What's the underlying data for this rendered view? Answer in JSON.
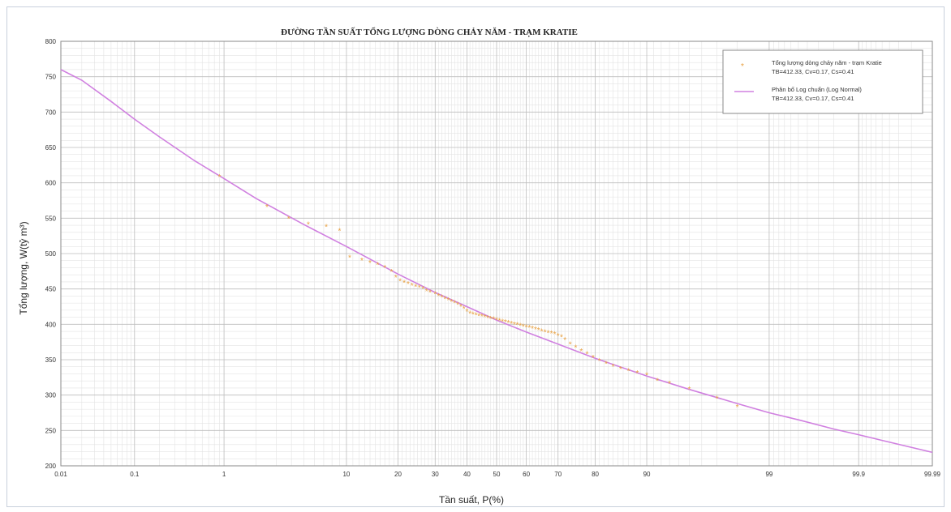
{
  "chart_data": {
    "type": "scatter",
    "title": "ĐƯỜNG TẦN SUẤT TỔNG LƯỢNG DÒNG CHẢY NĂM - TRẠM KRATIE",
    "xlabel": "Tần suất, P(%)",
    "ylabel": "Tổng lượng, W(tỷ m³)",
    "x_scale": "probability",
    "xlim": [
      0.01,
      99.99
    ],
    "ylim": [
      200,
      800
    ],
    "x_ticks": [
      0.01,
      0.1,
      1,
      10,
      20,
      30,
      40,
      50,
      60,
      70,
      80,
      90,
      99,
      99.9,
      99.99
    ],
    "x_tick_labels": [
      "0.01",
      "0.1",
      "1",
      "10",
      "20",
      "30",
      "40",
      "50",
      "60",
      "70",
      "80",
      "90",
      "99",
      "99.9",
      "99.99"
    ],
    "y_ticks": [
      200,
      250,
      300,
      350,
      400,
      450,
      500,
      550,
      600,
      650,
      700,
      750,
      800
    ],
    "y_tick_labels": [
      "200",
      "250",
      "300",
      "350",
      "400",
      "450",
      "500",
      "550",
      "600",
      "650",
      "700",
      "750",
      "800"
    ],
    "grid": true,
    "legend_position": "top-right",
    "series": [
      {
        "name": "Tổng lượng dòng chảy năm - trạm Kratie",
        "stats": "TB=412.33, Cv=0.17, Cs=0.41",
        "kind": "scatter",
        "color": "#e8a040",
        "x": [
          0.9,
          2.5,
          3.8,
          5.4,
          7.3,
          9.0,
          10.5,
          12.5,
          14.0,
          15.5,
          17.0,
          18.5,
          19.5,
          20.5,
          21.5,
          22.5,
          23.5,
          24.5,
          25.5,
          26.5,
          27.5,
          28.5,
          30.0,
          31.0,
          32.0,
          33.0,
          34.0,
          35.0,
          36.0,
          37.0,
          38.0,
          39.0,
          40.0,
          41.0,
          42.0,
          43.0,
          44.0,
          45.0,
          46.0,
          47.0,
          48.0,
          49.0,
          50.0,
          51.0,
          52.0,
          53.0,
          54.0,
          55.0,
          56.0,
          57.0,
          58.0,
          59.0,
          60.0,
          61.0,
          62.0,
          63.0,
          64.0,
          65.0,
          66.0,
          67.0,
          68.0,
          69.0,
          70.0,
          71.0,
          72.0,
          73.5,
          75.0,
          76.5,
          78.0,
          79.5,
          81.0,
          82.5,
          84.0,
          85.5,
          87.0,
          88.5,
          90.0,
          91.5,
          93.0,
          95.0,
          97.0,
          98.0
        ],
        "y": [
          608,
          566,
          549,
          541,
          538,
          532,
          494,
          490,
          487,
          484,
          480,
          474,
          466,
          461,
          459,
          457,
          455,
          453,
          452,
          450,
          447,
          445,
          443,
          440,
          438,
          436,
          434,
          432,
          430,
          428,
          425,
          422,
          418,
          415,
          414,
          413,
          412,
          411,
          410,
          409,
          408,
          407,
          406,
          405,
          404,
          403,
          402,
          401,
          400,
          399,
          398,
          397,
          396,
          395,
          394,
          393,
          392,
          390,
          389,
          388,
          387,
          386,
          384,
          382,
          378,
          372,
          367,
          362,
          358,
          353,
          348,
          344,
          340,
          337,
          334,
          331,
          328,
          320,
          316,
          308,
          295,
          283
        ]
      },
      {
        "name": "Phân bố Log chuẩn (Log Normal)",
        "stats": "TB=412.33, Cv=0.17, Cs=0.41",
        "kind": "line",
        "color": "#d080e0",
        "x": [
          0.01,
          0.02,
          0.05,
          0.1,
          0.2,
          0.5,
          1,
          2,
          5,
          10,
          20,
          30,
          40,
          50,
          60,
          70,
          80,
          90,
          95,
          98,
          99,
          99.5,
          99.8,
          99.9,
          99.95,
          99.99
        ],
        "y": [
          760,
          745,
          715,
          690,
          665,
          631,
          606,
          578,
          541,
          510,
          471,
          445,
          425,
          406,
          389,
          372,
          352,
          327,
          308,
          288,
          275,
          265,
          252,
          244,
          236,
          219
        ]
      }
    ]
  }
}
